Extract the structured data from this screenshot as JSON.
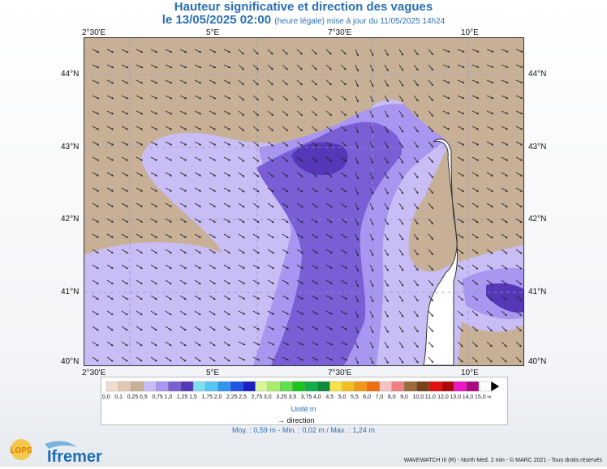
{
  "header": {
    "title": "Hauteur significative et direction des vagues",
    "date": "le 13/05/2025 02:00",
    "note": "(heure légale) mise à jour du 11/05/2025 14h24"
  },
  "axes": {
    "lon_labels": [
      "2°30'E",
      "5°E",
      "7°30'E",
      "10°E"
    ],
    "lat_labels": [
      "44°N",
      "43°N",
      "42°N",
      "41°N",
      "40°N"
    ]
  },
  "legend": {
    "values": [
      "0,0",
      "0,1",
      "0,25",
      "0,5",
      "0,75",
      "1,0",
      "1,25",
      "1,5",
      "1,75",
      "2,0",
      "2,25",
      "2,5",
      "2,75",
      "3,0",
      "3,25",
      "3,5",
      "3,75",
      "4,0",
      "4,5",
      "5,0",
      "5,5",
      "6,0",
      "7,0",
      "8,0",
      "9,0",
      "10,0",
      "11,0",
      "12,0",
      "13,0",
      "14,0",
      "15,0",
      "∞"
    ],
    "colors": [
      "#f0ddd0",
      "#e1c8b3",
      "#c8b097",
      "#c9bdf5",
      "#a996f0",
      "#7a5ed6",
      "#5537b8",
      "#7fe0f0",
      "#56c7f0",
      "#2f95ee",
      "#1f55e6",
      "#1a20c4",
      "#d8f59a",
      "#aaec6b",
      "#5ee04a",
      "#19c619",
      "#10ad48",
      "#0f8a3a",
      "#f6e24a",
      "#f3c01f",
      "#f29818",
      "#ee6f12",
      "#f9c3c3",
      "#f08080",
      "#9b6a3a",
      "#7a4018",
      "#e01010",
      "#b00808",
      "#ee14c8",
      "#b00880",
      "#fcfcfc"
    ],
    "unit": "Unité:m",
    "direction_label": "direction"
  },
  "stats": {
    "text": "Moy. : 0,59 m   -   Min. : 0,02 m / Max. : 1,24 m"
  },
  "logos": {
    "lops": "LOPS",
    "ifremer": "Ifremer"
  },
  "credit": "WAVEWATCH III (R) - North Med. 2 min - © MARC 2021 - Tous droits réservés",
  "colors": {
    "title": "#2a6fb5",
    "land": "#c8b097",
    "sea_low": "#c9bdf5",
    "sea_mid": "#a996f0",
    "sea_high": "#7a5ed6",
    "sea_peak": "#5537b8"
  }
}
